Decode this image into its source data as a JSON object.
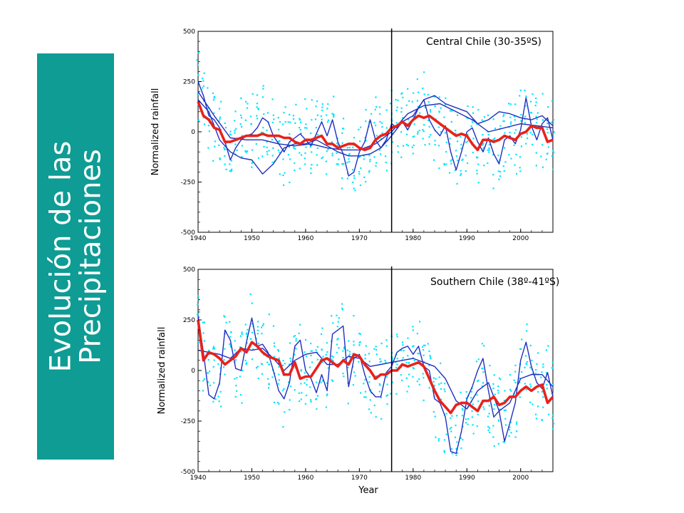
{
  "slide": {
    "title_line1": "Evolución de las",
    "title_line2": "Precipitaciones"
  },
  "colors": {
    "banner": "#0e9c95",
    "dots": "#00e5ff",
    "station_lines": "#1f2fbf",
    "mean_line": "#e8221b",
    "divider": "#000000"
  },
  "chart_data": [
    {
      "type": "line",
      "title": "Central Chile (30-35ºS)",
      "ylabel": "Normalized rainfall",
      "xlabel": "",
      "xlim": [
        1940,
        2006
      ],
      "ylim": [
        -500,
        500
      ],
      "x_ticks": [
        1940,
        1950,
        1960,
        1970,
        1980,
        1990,
        2000
      ],
      "y_ticks": [
        500,
        250,
        0,
        -250,
        -500
      ],
      "vline_x": 1976,
      "series": [
        {
          "role": "blue-a",
          "x": [
            1940,
            1941,
            1942,
            1943,
            1944,
            1945,
            1946,
            1947,
            1948,
            1949,
            1950,
            1951,
            1952,
            1953,
            1954,
            1955,
            1956,
            1957,
            1958,
            1959,
            1960,
            1961,
            1962,
            1963,
            1964,
            1965,
            1966,
            1967,
            1968,
            1969,
            1970,
            1971,
            1972,
            1973,
            1974,
            1975,
            1976,
            1977,
            1978,
            1979,
            1980,
            1981,
            1982,
            1983,
            1984,
            1985,
            1986,
            1987,
            1988,
            1989,
            1990,
            1991,
            1992,
            1993,
            1994,
            1995,
            1996,
            1997,
            1998,
            1999,
            2000,
            2001,
            2002,
            2003,
            2004,
            2005,
            2006
          ],
          "y": [
            250,
            180,
            80,
            60,
            20,
            -50,
            -140,
            -80,
            -40,
            -20,
            -10,
            20,
            70,
            50,
            -20,
            -60,
            -100,
            -50,
            -30,
            -10,
            -40,
            -70,
            -10,
            50,
            -20,
            60,
            -50,
            -110,
            -220,
            -200,
            -100,
            -50,
            60,
            -40,
            -80,
            -40,
            40,
            20,
            50,
            10,
            60,
            120,
            160,
            60,
            10,
            -20,
            30,
            -100,
            -190,
            -100,
            0,
            20,
            -50,
            -100,
            -30,
            -110,
            -160,
            -40,
            -20,
            -60,
            10,
            170,
            30,
            -40,
            40,
            70,
            -40
          ]
        },
        {
          "role": "blue-b",
          "x": [
            1940,
            1942,
            1944,
            1946,
            1948,
            1950,
            1952,
            1954,
            1956,
            1958,
            1960,
            1962,
            1964,
            1966,
            1968,
            1970,
            1972,
            1974,
            1976,
            1978,
            1980,
            1982,
            1984,
            1986,
            1988,
            1990,
            1992,
            1994,
            1996,
            1998,
            2000,
            2002,
            2004,
            2006
          ],
          "y": [
            160,
            100,
            -40,
            -100,
            -130,
            -140,
            -210,
            -160,
            -80,
            -60,
            -60,
            -40,
            -70,
            -100,
            -120,
            -120,
            -110,
            -80,
            -20,
            50,
            80,
            160,
            180,
            140,
            120,
            100,
            40,
            60,
            100,
            90,
            70,
            60,
            80,
            30
          ]
        },
        {
          "role": "blue-c",
          "x": [
            1940,
            1943,
            1946,
            1949,
            1952,
            1955,
            1958,
            1961,
            1964,
            1967,
            1970,
            1973,
            1976,
            1979,
            1982,
            1985,
            1988,
            1991,
            1994,
            1997,
            2000,
            2003,
            2006
          ],
          "y": [
            200,
            80,
            -30,
            -40,
            -40,
            -60,
            -70,
            -60,
            -80,
            -90,
            -90,
            -60,
            0,
            90,
            130,
            140,
            100,
            60,
            0,
            20,
            40,
            30,
            20
          ]
        },
        {
          "role": "mean",
          "x": [
            1940,
            1941,
            1942,
            1943,
            1944,
            1945,
            1946,
            1947,
            1948,
            1949,
            1950,
            1951,
            1952,
            1953,
            1954,
            1955,
            1956,
            1957,
            1958,
            1959,
            1960,
            1961,
            1962,
            1963,
            1964,
            1965,
            1966,
            1967,
            1968,
            1969,
            1970,
            1971,
            1972,
            1973,
            1974,
            1975,
            1976,
            1977,
            1978,
            1979,
            1980,
            1981,
            1982,
            1983,
            1984,
            1985,
            1986,
            1987,
            1988,
            1989,
            1990,
            1991,
            1992,
            1993,
            1994,
            1995,
            1996,
            1997,
            1998,
            1999,
            2000,
            2001,
            2002,
            2003,
            2004,
            2005,
            2006
          ],
          "y": [
            150,
            80,
            60,
            20,
            10,
            -50,
            -50,
            -40,
            -30,
            -20,
            -20,
            -20,
            -10,
            -20,
            -20,
            -20,
            -30,
            -30,
            -50,
            -60,
            -40,
            -40,
            -30,
            -20,
            -60,
            -60,
            -80,
            -70,
            -60,
            -60,
            -80,
            -90,
            -80,
            -40,
            -20,
            -10,
            20,
            30,
            50,
            30,
            60,
            80,
            70,
            80,
            60,
            40,
            20,
            0,
            -20,
            -10,
            -20,
            -60,
            -90,
            -40,
            -40,
            -50,
            -40,
            -20,
            -30,
            -40,
            -10,
            0,
            30,
            20,
            20,
            -50,
            -40
          ]
        }
      ]
    },
    {
      "type": "line",
      "title": "Southern Chile (38º-41ºS)",
      "ylabel": "Normalized rainfall",
      "xlabel": "Year",
      "xlim": [
        1940,
        2006
      ],
      "ylim": [
        -500,
        500
      ],
      "x_ticks": [
        1940,
        1950,
        1960,
        1970,
        1980,
        1990,
        2000
      ],
      "y_ticks": [
        500,
        250,
        0,
        -250,
        -500
      ],
      "vline_x": 1976,
      "series": [
        {
          "role": "blue-a",
          "x": [
            1940,
            1941,
            1942,
            1943,
            1944,
            1945,
            1946,
            1947,
            1948,
            1949,
            1950,
            1951,
            1952,
            1953,
            1954,
            1955,
            1956,
            1957,
            1958,
            1959,
            1960,
            1961,
            1962,
            1963,
            1964,
            1965,
            1966,
            1967,
            1968,
            1969,
            1970,
            1971,
            1972,
            1973,
            1974,
            1975,
            1976,
            1977,
            1978,
            1979,
            1980,
            1981,
            1982,
            1983,
            1984,
            1985,
            1986,
            1987,
            1988,
            1989,
            1990,
            1991,
            1992,
            1993,
            1994,
            1995,
            1996,
            1997,
            1998,
            1999,
            2000,
            2001,
            2002,
            2003,
            2004,
            2005,
            2006
          ],
          "y": [
            270,
            90,
            -120,
            -140,
            -60,
            200,
            150,
            10,
            0,
            140,
            260,
            120,
            130,
            90,
            0,
            -100,
            -140,
            -60,
            120,
            150,
            0,
            -40,
            -110,
            -20,
            -100,
            180,
            200,
            220,
            -80,
            60,
            80,
            -20,
            -100,
            -130,
            -130,
            -10,
            20,
            90,
            110,
            120,
            80,
            120,
            20,
            0,
            -140,
            -160,
            -230,
            -400,
            -410,
            -300,
            -140,
            -80,
            0,
            60,
            -100,
            -230,
            -200,
            -350,
            -260,
            -160,
            50,
            140,
            20,
            -60,
            -90,
            -10,
            -130
          ]
        },
        {
          "role": "blue-b",
          "x": [
            1940,
            1942,
            1944,
            1946,
            1948,
            1950,
            1952,
            1954,
            1956,
            1958,
            1960,
            1962,
            1964,
            1966,
            1968,
            1970,
            1972,
            1974,
            1976,
            1978,
            1980,
            1982,
            1984,
            1986,
            1988,
            1990,
            1992,
            1994,
            1996,
            1998,
            2000,
            2002,
            2004,
            2006
          ],
          "y": [
            100,
            90,
            80,
            60,
            110,
            100,
            110,
            60,
            0,
            50,
            80,
            90,
            30,
            30,
            70,
            60,
            20,
            30,
            40,
            50,
            60,
            40,
            20,
            -40,
            -150,
            -190,
            -100,
            -60,
            -200,
            -160,
            -40,
            -20,
            -20,
            -80
          ]
        },
        {
          "role": "mean",
          "x": [
            1940,
            1941,
            1942,
            1943,
            1944,
            1945,
            1946,
            1947,
            1948,
            1949,
            1950,
            1951,
            1952,
            1953,
            1954,
            1955,
            1956,
            1957,
            1958,
            1959,
            1960,
            1961,
            1962,
            1963,
            1964,
            1965,
            1966,
            1967,
            1968,
            1969,
            1970,
            1971,
            1972,
            1973,
            1974,
            1975,
            1976,
            1977,
            1978,
            1979,
            1980,
            1981,
            1982,
            1983,
            1984,
            1985,
            1986,
            1987,
            1988,
            1989,
            1990,
            1991,
            1992,
            1993,
            1994,
            1995,
            1996,
            1997,
            1998,
            1999,
            2000,
            2001,
            2002,
            2003,
            2004,
            2005,
            2006
          ],
          "y": [
            250,
            50,
            90,
            80,
            60,
            30,
            50,
            70,
            110,
            90,
            140,
            120,
            90,
            70,
            60,
            50,
            -20,
            -20,
            40,
            -40,
            -30,
            -30,
            10,
            50,
            60,
            40,
            20,
            50,
            30,
            80,
            70,
            30,
            0,
            -40,
            -20,
            -20,
            0,
            0,
            30,
            20,
            30,
            40,
            20,
            -40,
            -100,
            -150,
            -180,
            -210,
            -170,
            -160,
            -160,
            -180,
            -200,
            -150,
            -150,
            -130,
            -170,
            -160,
            -130,
            -130,
            -100,
            -80,
            -100,
            -80,
            -70,
            -160,
            -130
          ]
        }
      ]
    }
  ]
}
